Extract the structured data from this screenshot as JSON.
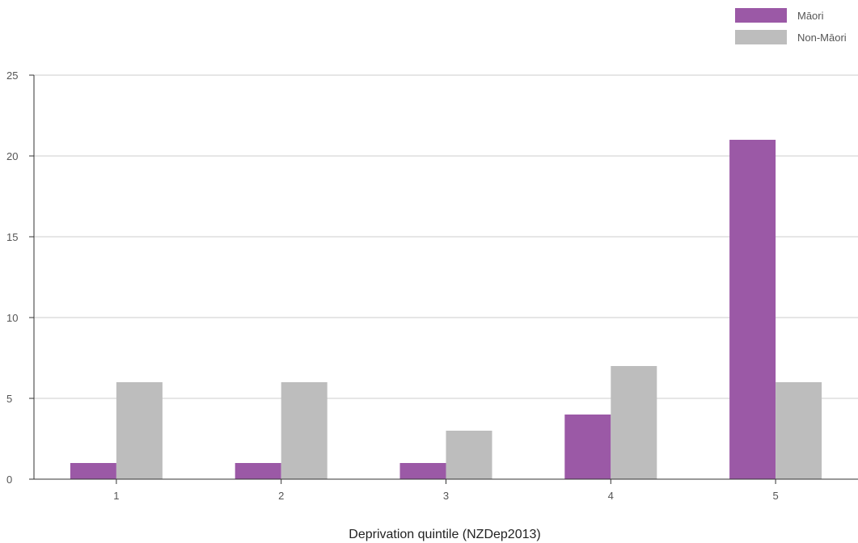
{
  "chart_data": {
    "type": "bar",
    "xlabel": "Deprivation quintile (NZDep2013)",
    "ylabel": "",
    "categories": [
      "1",
      "2",
      "3",
      "4",
      "5"
    ],
    "series": [
      {
        "name": "Māori",
        "color": "#9b59a6",
        "values": [
          1,
          1,
          1,
          4,
          21
        ]
      },
      {
        "name": "Non-Māori",
        "color": "#bdbdbd",
        "values": [
          6,
          6,
          3,
          7,
          6
        ]
      }
    ],
    "ylim": [
      0,
      25
    ],
    "yticks": [
      0,
      5,
      10,
      15,
      20,
      25
    ],
    "grid": true,
    "legend_position": "top-right"
  }
}
